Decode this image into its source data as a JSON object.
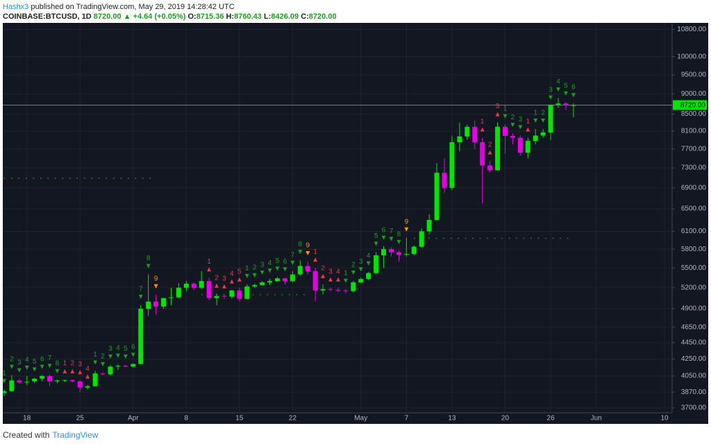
{
  "header": {
    "author": "Hashx3",
    "published": "published on TradingView.com, May 29, 2019 14:28:42 UTC",
    "symbol": "COINBASE:BTCUSD, 1D",
    "price": "8720.00",
    "change": "▲ +4.64 (+0.05%)",
    "ohlc": [
      {
        "key": "O:",
        "value": "8715.36"
      },
      {
        "key": "H:",
        "value": "8760.43"
      },
      {
        "key": "L:",
        "value": "8426.09"
      },
      {
        "key": "C:",
        "value": "8720.00"
      }
    ]
  },
  "footer": {
    "text": "Created with",
    "brand": "TradingView"
  },
  "chart_data": {
    "type": "candlestick",
    "log_scale": true,
    "grid": true,
    "up_color": "#00e600",
    "down_color": "#e600e6",
    "x": [
      "Mar 15",
      "Mar 16",
      "Mar 17",
      "Mar 18",
      "Mar 19",
      "Mar 20",
      "Mar 21",
      "Mar 22",
      "Mar 23",
      "Mar 24",
      "Mar 25",
      "Mar 26",
      "Mar 27",
      "Mar 28",
      "Mar 29",
      "Mar 30",
      "Mar 31",
      "Apr 1",
      "Apr 2",
      "Apr 3",
      "Apr 4",
      "Apr 5",
      "Apr 6",
      "Apr 7",
      "Apr 8",
      "Apr 9",
      "Apr 10",
      "Apr 11",
      "Apr 12",
      "Apr 13",
      "Apr 14",
      "Apr 15",
      "Apr 16",
      "Apr 17",
      "Apr 18",
      "Apr 19",
      "Apr 20",
      "Apr 21",
      "Apr 22",
      "Apr 23",
      "Apr 24",
      "Apr 25",
      "Apr 26",
      "Apr 27",
      "Apr 28",
      "Apr 29",
      "Apr 30",
      "May 1",
      "May 2",
      "May 3",
      "May 4",
      "May 5",
      "May 6",
      "May 7",
      "May 8",
      "May 9",
      "May 10",
      "May 11",
      "May 12",
      "May 13",
      "May 14",
      "May 15",
      "May 16",
      "May 17",
      "May 18",
      "May 19",
      "May 20",
      "May 21",
      "May 22",
      "May 23",
      "May 24",
      "May 25",
      "May 26",
      "May 27",
      "May 28",
      "May 29"
    ],
    "open": [
      3860,
      3880,
      4000,
      3985,
      3990,
      4020,
      4050,
      3990,
      4000,
      4005,
      3990,
      3920,
      3935,
      4080,
      4070,
      4160,
      4170,
      4160,
      4190,
      4900,
      5000,
      4930,
      5050,
      5060,
      5200,
      5260,
      5200,
      5300,
      5050,
      5080,
      5070,
      5160,
      5040,
      5220,
      5240,
      5280,
      5300,
      5340,
      5300,
      5400,
      5530,
      5450,
      5160,
      5180,
      5170,
      5160,
      5150,
      5280,
      5330,
      5420,
      5700,
      5800,
      5750,
      5710,
      5720,
      5840,
      6100,
      6300,
      7200,
      6900,
      7850,
      7980,
      8200,
      7850,
      7350,
      7250,
      8200,
      7990,
      7950,
      7620,
      7880,
      8000,
      8070,
      8730,
      8760,
      8715.36
    ],
    "high": [
      3900,
      4060,
      4020,
      4050,
      4030,
      4060,
      4070,
      4010,
      4010,
      4010,
      4000,
      3950,
      4110,
      4090,
      4180,
      4190,
      4180,
      4200,
      4950,
      5400,
      5100,
      5050,
      5200,
      5270,
      5300,
      5280,
      5450,
      5350,
      5110,
      5100,
      5170,
      5200,
      5250,
      5260,
      5300,
      5330,
      5360,
      5350,
      5450,
      5620,
      5600,
      5500,
      5250,
      5200,
      5200,
      5180,
      5300,
      5350,
      5440,
      5750,
      5850,
      5830,
      5780,
      5990,
      5860,
      6150,
      6400,
      7400,
      7500,
      8000,
      8300,
      8250,
      8350,
      7950,
      7450,
      8300,
      8250,
      8050,
      8000,
      7950,
      8150,
      8150,
      8700,
      8900,
      8800,
      8760.43
    ],
    "low": [
      3830,
      3870,
      3960,
      3950,
      3970,
      3990,
      3940,
      3970,
      3980,
      3975,
      3870,
      3900,
      3930,
      4060,
      4060,
      4120,
      4150,
      4150,
      4190,
      4800,
      4820,
      4900,
      4950,
      5050,
      5150,
      5170,
      5180,
      5020,
      4950,
      5040,
      5040,
      5000,
      5030,
      5200,
      5230,
      5240,
      5290,
      5250,
      5280,
      5380,
      5400,
      5000,
      5100,
      5150,
      5140,
      5120,
      5130,
      5270,
      5310,
      5400,
      5500,
      5680,
      5600,
      5680,
      5700,
      5830,
      6050,
      6300,
      6800,
      6850,
      7650,
      7900,
      7700,
      6600,
      7200,
      7250,
      7600,
      7800,
      7550,
      7500,
      7800,
      7950,
      7900,
      8650,
      8600,
      8426.09
    ],
    "close": [
      3880,
      4000,
      3980,
      3985,
      4020,
      4050,
      3990,
      4000,
      4005,
      3990,
      3920,
      3935,
      4080,
      4070,
      4160,
      4170,
      4160,
      4190,
      4900,
      5000,
      4930,
      5050,
      5060,
      5200,
      5260,
      5200,
      5300,
      5050,
      5080,
      5070,
      5160,
      5040,
      5220,
      5240,
      5280,
      5300,
      5340,
      5300,
      5400,
      5530,
      5450,
      5160,
      5180,
      5170,
      5160,
      5150,
      5280,
      5330,
      5420,
      5700,
      5800,
      5750,
      5710,
      5720,
      5840,
      6100,
      6300,
      7200,
      6900,
      7850,
      7980,
      8200,
      7850,
      7350,
      7250,
      8200,
      7990,
      7950,
      7620,
      7880,
      8000,
      8070,
      8730,
      8760,
      8720,
      8720
    ],
    "xlim": [
      "Mar 14",
      "Jun 11"
    ],
    "ylim": [
      3650,
      10960
    ],
    "xticks": [
      {
        "value": "Mar 18",
        "label": "18"
      },
      {
        "value": "Mar 25",
        "label": "25"
      },
      {
        "value": "Apr 1",
        "label": "Apr"
      },
      {
        "value": "Apr 8",
        "label": "8"
      },
      {
        "value": "Apr 15",
        "label": "15"
      },
      {
        "value": "Apr 22",
        "label": "22"
      },
      {
        "value": "May 1",
        "label": "May"
      },
      {
        "value": "May 7",
        "label": "7"
      },
      {
        "value": "May 13",
        "label": "13"
      },
      {
        "value": "May 20",
        "label": "20"
      },
      {
        "value": "May 26",
        "label": "26"
      },
      {
        "value": "Jun 1",
        "label": "Jun"
      },
      {
        "value": "Jun 10",
        "label": "10"
      }
    ],
    "yticks": [
      {
        "value": 3700,
        "label": "3700.00"
      },
      {
        "value": 3870,
        "label": "3870.00"
      },
      {
        "value": 4050,
        "label": "4050.00"
      },
      {
        "value": 4250,
        "label": "4250.00"
      },
      {
        "value": 4450,
        "label": "4450.00"
      },
      {
        "value": 4650,
        "label": "4650.00"
      },
      {
        "value": 4900,
        "label": "4900.00"
      },
      {
        "value": 5200,
        "label": "5200.00"
      },
      {
        "value": 5500,
        "label": "5500.00"
      },
      {
        "value": 5800,
        "label": "5800.00"
      },
      {
        "value": 6100,
        "label": "6100.00"
      },
      {
        "value": 6500,
        "label": "6500.00"
      },
      {
        "value": 6900,
        "label": "6900.00"
      },
      {
        "value": 7300,
        "label": "7300.00"
      },
      {
        "value": 7700,
        "label": "7700.00"
      },
      {
        "value": 8100,
        "label": "8100.00"
      },
      {
        "value": 8500,
        "label": "8500.00"
      },
      {
        "value": 9000,
        "label": "9000.00"
      },
      {
        "value": 9500,
        "label": "9500.00"
      },
      {
        "value": 10000,
        "label": "10000.00"
      },
      {
        "value": 10800,
        "label": "10800.00"
      }
    ],
    "last_price": {
      "value": 8720,
      "label": "8720.00",
      "color": "#00e600"
    },
    "levels": [
      {
        "value": 7090,
        "from": "Mar 14",
        "to": "Apr 4",
        "color": "#1e9e1e"
      },
      {
        "value": 5100,
        "from": "Apr 10",
        "to": "Apr 24",
        "color": "#1e9e1e"
      },
      {
        "value": 5980,
        "from": "May 8",
        "to": "May 29",
        "color": "#1e9e1e"
      }
    ],
    "annotations": [
      {
        "x": "Mar 15",
        "label": "1",
        "color": "#1e9e1e",
        "marker": "down"
      },
      {
        "x": "Mar 16",
        "label": "2",
        "color": "#1e9e1e",
        "marker": "down"
      },
      {
        "x": "Mar 17",
        "label": "3",
        "color": "#1e9e1e",
        "marker": "down"
      },
      {
        "x": "Mar 18",
        "label": "4",
        "color": "#1e9e1e",
        "marker": "down"
      },
      {
        "x": "Mar 19",
        "label": "5",
        "color": "#1e9e1e",
        "marker": "down"
      },
      {
        "x": "Mar 20",
        "label": "6",
        "color": "#1e9e1e",
        "marker": "down"
      },
      {
        "x": "Mar 21",
        "label": "7",
        "color": "#1e9e1e",
        "marker": "down"
      },
      {
        "x": "Mar 22",
        "label": "8",
        "color": "#1e9e1e",
        "marker": "down"
      },
      {
        "x": "Mar 23",
        "label": "1",
        "color": "#f23645",
        "marker": "up"
      },
      {
        "x": "Mar 24",
        "label": "2",
        "color": "#f23645",
        "marker": "up"
      },
      {
        "x": "Mar 25",
        "label": "3",
        "color": "#f23645",
        "marker": "up"
      },
      {
        "x": "Mar 26",
        "label": "4",
        "color": "#f23645",
        "marker": "up"
      },
      {
        "x": "Mar 27",
        "label": "1",
        "color": "#1e9e1e",
        "marker": "down"
      },
      {
        "x": "Mar 28",
        "label": "2",
        "color": "#1e9e1e",
        "marker": "down"
      },
      {
        "x": "Mar 29",
        "label": "3",
        "color": "#1e9e1e",
        "marker": "down"
      },
      {
        "x": "Mar 30",
        "label": "4",
        "color": "#1e9e1e",
        "marker": "down"
      },
      {
        "x": "Mar 31",
        "label": "5",
        "color": "#1e9e1e",
        "marker": "down"
      },
      {
        "x": "Apr 1",
        "label": "6",
        "color": "#1e9e1e",
        "marker": "down"
      },
      {
        "x": "Apr 2",
        "label": "7",
        "color": "#1e9e1e",
        "marker": "down"
      },
      {
        "x": "Apr 3",
        "label": "8",
        "color": "#1e9e1e",
        "marker": "down"
      },
      {
        "x": "Apr 4",
        "label": "9",
        "color": "#ff9800",
        "marker": "down"
      },
      {
        "x": "Apr 11",
        "label": "1",
        "color": "#f23645",
        "marker": "up"
      },
      {
        "x": "Apr 12",
        "label": "2",
        "color": "#f23645",
        "marker": "up"
      },
      {
        "x": "Apr 13",
        "label": "3",
        "color": "#f23645",
        "marker": "up"
      },
      {
        "x": "Apr 14",
        "label": "4",
        "color": "#f23645",
        "marker": "up"
      },
      {
        "x": "Apr 15",
        "label": "5",
        "color": "#f23645",
        "marker": "up"
      },
      {
        "x": "Apr 16",
        "label": "1",
        "color": "#1e9e1e",
        "marker": "down"
      },
      {
        "x": "Apr 17",
        "label": "2",
        "color": "#1e9e1e",
        "marker": "down"
      },
      {
        "x": "Apr 18",
        "label": "3",
        "color": "#1e9e1e",
        "marker": "down"
      },
      {
        "x": "Apr 19",
        "label": "4",
        "color": "#1e9e1e",
        "marker": "down"
      },
      {
        "x": "Apr 20",
        "label": "5",
        "color": "#1e9e1e",
        "marker": "down"
      },
      {
        "x": "Apr 21",
        "label": "6",
        "color": "#1e9e1e",
        "marker": "down"
      },
      {
        "x": "Apr 22",
        "label": "7",
        "color": "#1e9e1e",
        "marker": "down"
      },
      {
        "x": "Apr 23",
        "label": "8",
        "color": "#1e9e1e",
        "marker": "down"
      },
      {
        "x": "Apr 24",
        "label": "9",
        "color": "#ff9800",
        "marker": "down"
      },
      {
        "x": "Apr 25",
        "label": "1",
        "color": "#f23645",
        "marker": "up"
      },
      {
        "x": "Apr 26",
        "label": "2",
        "color": "#f23645",
        "marker": "up"
      },
      {
        "x": "Apr 27",
        "label": "3",
        "color": "#f23645",
        "marker": "up"
      },
      {
        "x": "Apr 28",
        "label": "4",
        "color": "#f23645",
        "marker": "up"
      },
      {
        "x": "Apr 29",
        "label": "1",
        "color": "#1e9e1e",
        "marker": "down"
      },
      {
        "x": "Apr 30",
        "label": "2",
        "color": "#1e9e1e",
        "marker": "down"
      },
      {
        "x": "May 1",
        "label": "3",
        "color": "#1e9e1e",
        "marker": "down"
      },
      {
        "x": "May 2",
        "label": "4",
        "color": "#1e9e1e",
        "marker": "down"
      },
      {
        "x": "May 3",
        "label": "5",
        "color": "#1e9e1e",
        "marker": "down"
      },
      {
        "x": "May 4",
        "label": "6",
        "color": "#1e9e1e",
        "marker": "down"
      },
      {
        "x": "May 5",
        "label": "7",
        "color": "#1e9e1e",
        "marker": "down"
      },
      {
        "x": "May 6",
        "label": "8",
        "color": "#1e9e1e",
        "marker": "down"
      },
      {
        "x": "May 7",
        "label": "9",
        "color": "#ff9800",
        "marker": "down"
      },
      {
        "x": "May 17",
        "label": "1",
        "color": "#f23645",
        "marker": "up"
      },
      {
        "x": "May 18",
        "label": "2",
        "color": "#f23645",
        "marker": "up"
      },
      {
        "x": "May 19",
        "label": "3",
        "color": "#f23645",
        "marker": "up"
      },
      {
        "x": "May 20",
        "label": "1",
        "color": "#1e9e1e",
        "marker": "down"
      },
      {
        "x": "May 21",
        "label": "2",
        "color": "#1e9e1e",
        "marker": "down"
      },
      {
        "x": "May 22",
        "label": "3",
        "color": "#1e9e1e",
        "marker": "down"
      },
      {
        "x": "May 23",
        "label": "1",
        "color": "#f23645",
        "marker": "up"
      },
      {
        "x": "May 24",
        "label": "1",
        "color": "#1e9e1e",
        "marker": "down"
      },
      {
        "x": "May 25",
        "label": "2",
        "color": "#1e9e1e",
        "marker": "down"
      },
      {
        "x": "May 26",
        "label": "3",
        "color": "#1e9e1e",
        "marker": "down"
      },
      {
        "x": "May 27",
        "label": "4",
        "color": "#1e9e1e",
        "marker": "down"
      },
      {
        "x": "May 28",
        "label": "5",
        "color": "#1e9e1e",
        "marker": "down"
      },
      {
        "x": "May 29",
        "label": "6",
        "color": "#1e9e1e",
        "marker": "down"
      }
    ]
  }
}
